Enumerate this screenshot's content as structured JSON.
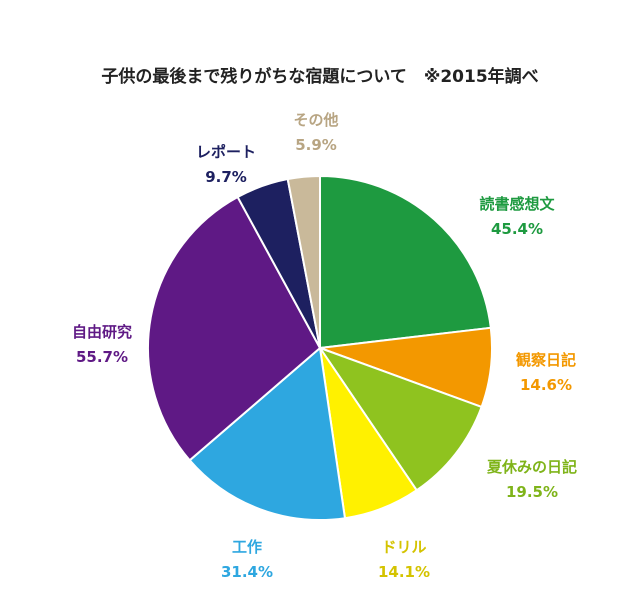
{
  "chart_data": {
    "type": "pie",
    "title": "子供の最後まで残りがちな宿題について　※2015年調べ",
    "start": "top",
    "direction": "clockwise",
    "slices": [
      {
        "label": "読書感想文",
        "value": 45.4,
        "display": "45.4%",
        "color": "#1e9a40",
        "text_color": "#1e9a40"
      },
      {
        "label": "観察日記",
        "value": 14.6,
        "display": "14.6%",
        "color": "#f39800",
        "text_color": "#f39800"
      },
      {
        "label": "夏休みの日記",
        "value": 19.5,
        "display": "19.5%",
        "color": "#8fc31f",
        "text_color": "#7fb41a"
      },
      {
        "label": "ドリル",
        "value": 14.1,
        "display": "14.1%",
        "color": "#fff100",
        "text_color": "#d4c300"
      },
      {
        "label": "工作",
        "value": 31.4,
        "display": "31.4%",
        "color": "#2ea7e0",
        "text_color": "#2ea7e0"
      },
      {
        "label": "自由研究",
        "value": 55.7,
        "display": "55.7%",
        "color": "#5f1985",
        "text_color": "#5f1985"
      },
      {
        "label": "レポート",
        "value": 9.7,
        "display": "9.7%",
        "color": "#1d2060",
        "text_color": "#1d2060"
      },
      {
        "label": "その他",
        "value": 5.9,
        "display": "5.9%",
        "color": "#c9b99a",
        "text_color": "#b8a583"
      }
    ]
  }
}
